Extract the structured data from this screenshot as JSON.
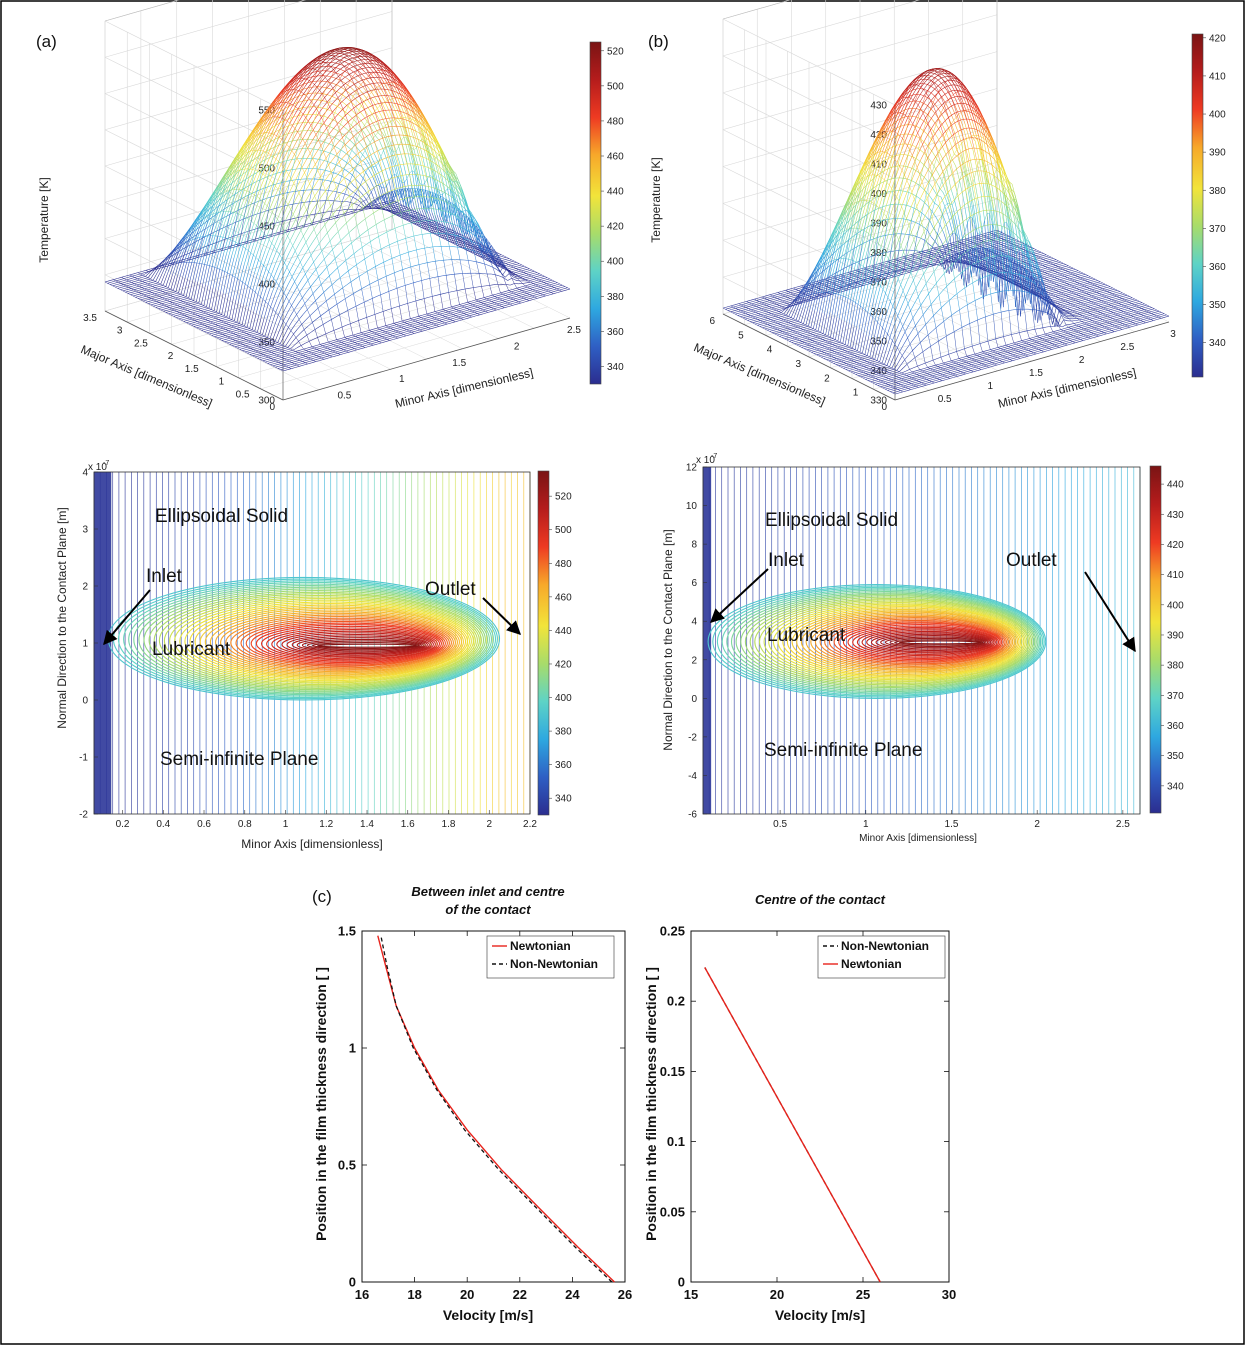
{
  "panel_labels": {
    "a": "(a)",
    "b": "(b)",
    "c": "(c)"
  },
  "colormap": [
    "#2b2d8f",
    "#2f5fc4",
    "#2ea8e0",
    "#5ed3c6",
    "#a8dc6a",
    "#f2e43a",
    "#f7a82a",
    "#ee3a22",
    "#b51c1c",
    "#7a1414"
  ],
  "chart_data": [
    {
      "id": "a-surface",
      "type": "surface",
      "zlabel": "Temperature [K]",
      "xlabel": "Minor Axis [dimensionless]",
      "ylabel": "Major Axis [dimensionless]",
      "x_ticks": [
        "0.5",
        "1",
        "1.5",
        "2",
        "2.5"
      ],
      "y_ticks": [
        "0",
        "0.5",
        "1",
        "1.5",
        "2",
        "2.5",
        "3",
        "3.5"
      ],
      "z_ticks": [
        "300",
        "350",
        "400",
        "450",
        "500",
        "550"
      ],
      "xlim": [
        0,
        2.5
      ],
      "ylim": [
        0,
        3.5
      ],
      "zlim": [
        300,
        550
      ],
      "peak_temperature": 520,
      "base_temperature": 325,
      "colorbar": {
        "min": 330,
        "max": 525,
        "ticks": [
          "340",
          "360",
          "380",
          "400",
          "420",
          "440",
          "460",
          "480",
          "500",
          "520"
        ]
      }
    },
    {
      "id": "b-surface",
      "type": "surface",
      "zlabel": "Temperature [K]",
      "xlabel": "Minor Axis [dimensionless]",
      "ylabel": "Major Axis [dimensionless]",
      "x_ticks": [
        "0.5",
        "1",
        "1.5",
        "2",
        "2.5",
        "3"
      ],
      "y_ticks": [
        "0",
        "1",
        "2",
        "3",
        "4",
        "5",
        "6"
      ],
      "z_ticks": [
        "330",
        "340",
        "350",
        "360",
        "370",
        "380",
        "390",
        "400",
        "410",
        "420",
        "430"
      ],
      "xlim": [
        0,
        3
      ],
      "ylim": [
        0,
        6
      ],
      "zlim": [
        330,
        430
      ],
      "peak_temperature": 415,
      "base_temperature": 332,
      "colorbar": {
        "min": 331,
        "max": 421,
        "ticks": [
          "340",
          "350",
          "360",
          "370",
          "380",
          "390",
          "400",
          "410",
          "420"
        ]
      }
    },
    {
      "id": "a-contour",
      "type": "contour",
      "xlabel": "Minor Axis [dimensionless]",
      "ylabel": "Normal Direction to the Contact Plane [m]",
      "y_exponent": "x 10",
      "y_exponent_power": "-7",
      "x_ticks": [
        "0.2",
        "0.4",
        "0.6",
        "0.8",
        "1",
        "1.2",
        "1.4",
        "1.6",
        "1.8",
        "2",
        "2.2"
      ],
      "y_ticks": [
        "-2",
        "-1",
        "0",
        "1",
        "2",
        "3",
        "4"
      ],
      "xlim": [
        0.06,
        2.2
      ],
      "ylim": [
        -2,
        4
      ],
      "film": {
        "x_start": 0.13,
        "x_end": 2.05,
        "inlet_height": 1.75,
        "outlet_height": 2.55,
        "peak_x": 1.3,
        "peak_y": 0.95
      },
      "labels": {
        "solid": "Ellipsoidal Solid",
        "inlet": "Inlet",
        "outlet": "Outlet",
        "lubricant": "Lubricant",
        "plane": "Semi-infinite Plane"
      },
      "colorbar": {
        "min": 330,
        "max": 535,
        "ticks": [
          "340",
          "360",
          "380",
          "400",
          "420",
          "440",
          "460",
          "480",
          "500",
          "520"
        ]
      }
    },
    {
      "id": "b-contour",
      "type": "contour",
      "xlabel": "Minor Axis [dimensionless]",
      "ylabel": "Normal Direction to the Contact Plane [m]",
      "y_exponent": "x 10",
      "y_exponent_power": "-7",
      "x_ticks": [
        "0.5",
        "1",
        "1.5",
        "2",
        "2.5"
      ],
      "y_ticks": [
        "-6",
        "-4",
        "-2",
        "0",
        "2",
        "4",
        "6",
        "8",
        "10",
        "12"
      ],
      "xlim": [
        0.05,
        2.6
      ],
      "ylim": [
        -6,
        12
      ],
      "film": {
        "x_start": 0.08,
        "x_end": 2.05,
        "inlet_height": 8.5,
        "top_height": 5.9,
        "peak_x": 1.35,
        "peak_y": 2.9
      },
      "labels": {
        "solid": "Ellipsoidal Solid",
        "inlet": "Inlet",
        "outlet": "Outlet",
        "lubricant": "Lubricant",
        "plane": "Semi-infinite Plane"
      },
      "colorbar": {
        "min": 331,
        "max": 446,
        "ticks": [
          "340",
          "350",
          "360",
          "370",
          "380",
          "390",
          "400",
          "410",
          "420",
          "430",
          "440"
        ]
      }
    },
    {
      "id": "c-left",
      "type": "line",
      "title_lines": [
        "Between inlet and centre",
        "of the contact"
      ],
      "xlabel": "Velocity [m/s]",
      "ylabel": "Position in the film thickness direction [     ]",
      "xlim": [
        16,
        26
      ],
      "ylim": [
        0,
        1.5
      ],
      "x_ticks": [
        16,
        18,
        20,
        22,
        24,
        26
      ],
      "y_ticks": [
        0,
        0.5,
        1,
        1.5
      ],
      "legend_position": "top-right",
      "series": [
        {
          "name": "Newtonian",
          "style": "solid",
          "color": "#e8231c",
          "x": [
            25.6,
            24.2,
            22.7,
            21.3,
            20.0,
            18.9,
            18.0,
            17.3,
            16.9,
            16.6
          ],
          "y": [
            0,
            0.15,
            0.32,
            0.48,
            0.65,
            0.82,
            1.0,
            1.18,
            1.35,
            1.48
          ]
        },
        {
          "name": "Non-Newtonian",
          "style": "dashed",
          "color": "#111111",
          "x": [
            25.5,
            24.1,
            22.6,
            21.2,
            19.9,
            18.85,
            17.95,
            17.3,
            16.95,
            16.72
          ],
          "y": [
            0,
            0.15,
            0.32,
            0.48,
            0.65,
            0.82,
            1.0,
            1.18,
            1.35,
            1.48
          ]
        }
      ]
    },
    {
      "id": "c-right",
      "type": "line",
      "title_lines": [
        "Centre of the contact"
      ],
      "xlabel": "Velocity [m/s]",
      "ylabel": "Position in the film thickness direction [     ]",
      "xlim": [
        15,
        30
      ],
      "ylim": [
        0,
        0.25
      ],
      "x_ticks": [
        15,
        20,
        25,
        30
      ],
      "y_ticks": [
        0,
        0.05,
        0.1,
        0.15,
        0.2,
        0.25
      ],
      "legend_position": "top-right",
      "series": [
        {
          "name": "Non-Newtonian",
          "style": "dashed",
          "color": "#111111",
          "x": [
            26.0,
            15.8
          ],
          "y": [
            0,
            0.224
          ]
        },
        {
          "name": "Newtonian",
          "style": "solid",
          "color": "#e8231c",
          "x": [
            26.0,
            15.8
          ],
          "y": [
            0,
            0.224
          ]
        }
      ]
    }
  ]
}
